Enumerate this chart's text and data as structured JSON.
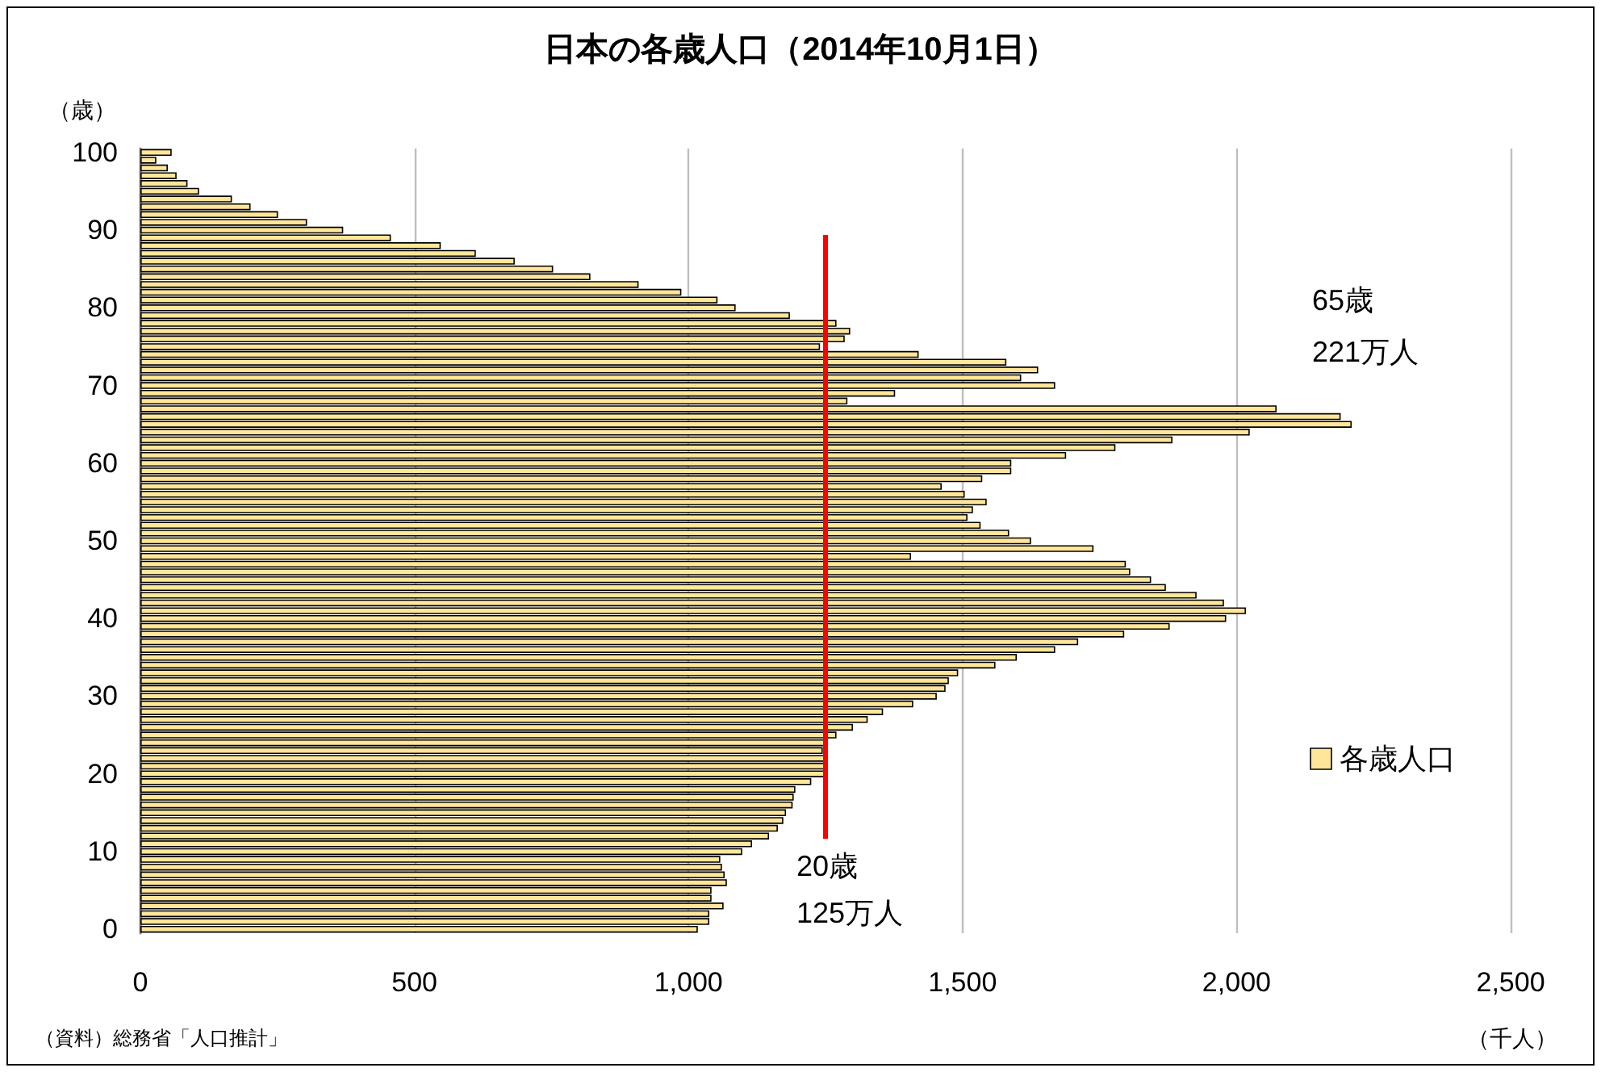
{
  "chart_data": {
    "type": "bar",
    "orientation": "horizontal",
    "title": "日本の各歳人口（2014年10月1日）",
    "ylabel": "（歳）",
    "xlabel": "（千人）",
    "categories": [
      "100",
      null,
      null,
      null,
      null,
      null,
      null,
      null,
      null,
      null,
      "90",
      null,
      null,
      null,
      null,
      null,
      null,
      null,
      null,
      null,
      "80",
      null,
      null,
      null,
      null,
      null,
      null,
      null,
      null,
      null,
      "70",
      null,
      null,
      null,
      null,
      null,
      null,
      null,
      null,
      null,
      "60",
      null,
      null,
      null,
      null,
      null,
      null,
      null,
      null,
      null,
      "50",
      null,
      null,
      null,
      null,
      null,
      null,
      null,
      null,
      null,
      "40",
      null,
      null,
      null,
      null,
      null,
      null,
      null,
      null,
      null,
      "30",
      null,
      null,
      null,
      null,
      null,
      null,
      null,
      null,
      null,
      "20",
      null,
      null,
      null,
      null,
      null,
      null,
      null,
      null,
      null,
      "10",
      null,
      null,
      null,
      null,
      null,
      null,
      null,
      null,
      null,
      "0"
    ],
    "series": [
      {
        "name": "各歳人口",
        "color": "#ffe699",
        "values": [
          57,
          29,
          50,
          66,
          86,
          107,
          167,
          201,
          251,
          304,
          370,
          457,
          548,
          612,
          683,
          753,
          821,
          909,
          987,
          1053,
          1086,
          1185,
          1270,
          1295,
          1285,
          1240,
          1420,
          1580,
          1638,
          1607,
          1669,
          1377,
          1290,
          2073,
          2190,
          2210,
          2024,
          1883,
          1779,
          1689,
          1589,
          1589,
          1536,
          1462,
          1504,
          1544,
          1519,
          1509,
          1533,
          1585,
          1625,
          1739,
          1406,
          1798,
          1806,
          1844,
          1871,
          1927,
          1977,
          2017,
          1981,
          1878,
          1795,
          1711,
          1669,
          1599,
          1560,
          1492,
          1475,
          1469,
          1453,
          1410,
          1355,
          1327,
          1300,
          1270,
          1248,
          1245,
          1250,
          1248,
          1250,
          1224,
          1195,
          1192,
          1190,
          1178,
          1173,
          1163,
          1147,
          1116,
          1098,
          1058,
          1061,
          1066,
          1070,
          1042,
          1042,
          1064,
          1038,
          1038,
          1017
        ]
      }
    ],
    "xlim": [
      0,
      2500
    ],
    "xticks": [
      0,
      500,
      {
        "value": 1000,
        "label": "1,000"
      },
      {
        "value": 1500,
        "label": "1,500"
      },
      {
        "value": 2000,
        "label": "2,000"
      },
      {
        "value": 2500,
        "label": "2,500"
      }
    ],
    "grid": "x",
    "legend": "right",
    "ref_lines": [
      {
        "axis": "x",
        "value": 1250,
        "label": "20歳\n125万人",
        "color": "#ff0000"
      }
    ],
    "annotations": [
      "（資料）総務省「人口推計」",
      "65歳\n221万人"
    ]
  }
}
